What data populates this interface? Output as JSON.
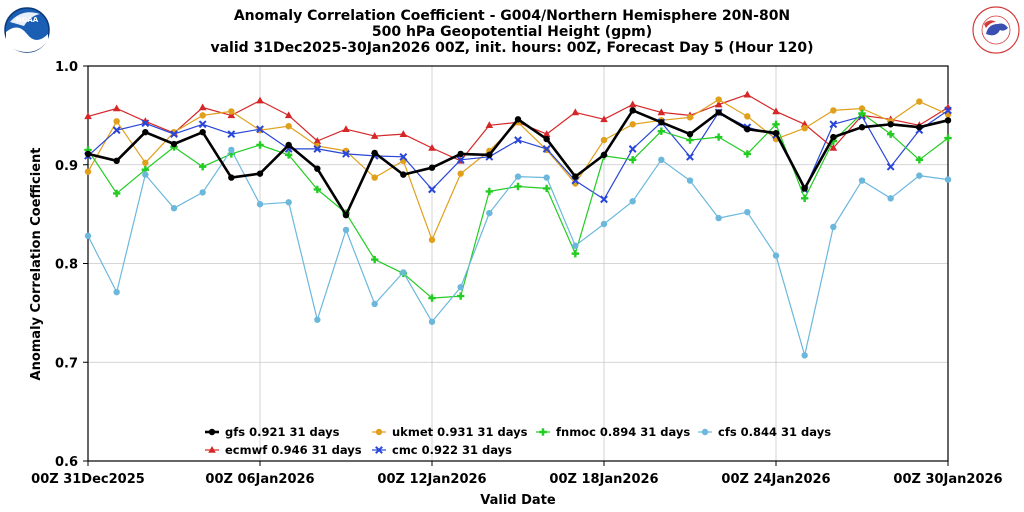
{
  "header": {
    "title_lines": [
      "Anomaly Correlation Coefficient - G004/Northern Hemisphere 20N-80N",
      "500 hPa Geopotential Height (gpm)",
      "valid 31Dec2025-30Jan2026 00Z, init. hours: 00Z, Forecast Day 5 (Hour 120)"
    ],
    "left_logo_text": "NOAA",
    "right_logo_text": "NATIONAL WEATHER SERVICE"
  },
  "chart_data": {
    "type": "line",
    "title": "Anomaly Correlation Coefficient - G004/Northern Hemisphere 20N-80N",
    "subtitle": "500 hPa Geopotential Height (gpm) valid 31Dec2025-30Jan2026 00Z, init. hours: 00Z, Forecast Day 5 (Hour 120)",
    "xlabel": "Valid Date",
    "ylabel": "Anomaly Correlation Coefficient",
    "ylim": [
      0.6,
      1.0
    ],
    "yticks": [
      "0.6",
      "0.7",
      "0.8",
      "0.9",
      "1.0"
    ],
    "x_ticks": [
      {
        "index": 0,
        "label": "00Z 31Dec2025"
      },
      {
        "index": 6,
        "label": "00Z 06Jan2026"
      },
      {
        "index": 12,
        "label": "00Z 12Jan2026"
      },
      {
        "index": 18,
        "label": "00Z 18Jan2026"
      },
      {
        "index": 24,
        "label": "00Z 24Jan2026"
      },
      {
        "index": 30,
        "label": "00Z 30Jan2026"
      }
    ],
    "x": [
      "2025-12-31",
      "2026-01-01",
      "2026-01-02",
      "2026-01-03",
      "2026-01-04",
      "2026-01-05",
      "2026-01-06",
      "2026-01-07",
      "2026-01-08",
      "2026-01-09",
      "2026-01-10",
      "2026-01-11",
      "2026-01-12",
      "2026-01-13",
      "2026-01-14",
      "2026-01-15",
      "2026-01-16",
      "2026-01-17",
      "2026-01-18",
      "2026-01-19",
      "2026-01-20",
      "2026-01-21",
      "2026-01-22",
      "2026-01-23",
      "2026-01-24",
      "2026-01-25",
      "2026-01-26",
      "2026-01-27",
      "2026-01-28",
      "2026-01-29",
      "2026-01-30"
    ],
    "grid": true,
    "legend_placement": "bottom-center",
    "series": [
      {
        "name": "gfs",
        "label": "gfs 0.921 31 days",
        "color": "#000000",
        "marker": "circle",
        "line_width": 2.6,
        "values": [
          0.911,
          0.904,
          0.933,
          0.921,
          0.933,
          0.887,
          0.891,
          0.92,
          0.896,
          0.849,
          0.912,
          0.89,
          0.897,
          0.911,
          0.91,
          0.946,
          0.926,
          0.888,
          0.91,
          0.955,
          0.943,
          0.931,
          0.953,
          0.936,
          0.932,
          0.876,
          0.928,
          0.938,
          0.941,
          0.938,
          0.945
        ]
      },
      {
        "name": "ecmwf",
        "label": "ecmwf 0.946 31 days",
        "color": "#d62728",
        "marker": "triangle",
        "line_width": 1.2,
        "values": [
          0.949,
          0.957,
          0.944,
          0.932,
          0.958,
          0.95,
          0.965,
          0.95,
          0.924,
          0.936,
          0.929,
          0.931,
          0.917,
          0.904,
          0.94,
          0.943,
          0.931,
          0.953,
          0.946,
          0.961,
          0.953,
          0.95,
          0.961,
          0.971,
          0.954,
          0.941,
          0.917,
          0.95,
          0.946,
          0.94,
          0.958
        ]
      },
      {
        "name": "ukmet",
        "label": "ukmet 0.931 31 days",
        "color": "#e0a01c",
        "marker": "circle",
        "line_width": 1.2,
        "values": [
          0.893,
          0.944,
          0.902,
          0.933,
          0.95,
          0.954,
          0.935,
          0.939,
          0.919,
          0.914,
          0.887,
          0.904,
          0.824,
          0.891,
          0.914,
          0.943,
          0.915,
          0.881,
          0.925,
          0.941,
          0.945,
          0.948,
          0.966,
          0.949,
          0.926,
          0.937,
          0.955,
          0.957,
          0.944,
          0.964,
          0.951
        ]
      },
      {
        "name": "cmc",
        "label": "cmc 0.922 31 days",
        "color": "#2846d8",
        "marker": "x",
        "line_width": 1.2,
        "values": [
          0.909,
          0.935,
          0.942,
          0.931,
          0.941,
          0.931,
          0.936,
          0.916,
          0.916,
          0.911,
          0.909,
          0.908,
          0.875,
          0.905,
          0.908,
          0.925,
          0.916,
          0.884,
          0.865,
          0.916,
          0.943,
          0.908,
          0.953,
          0.938,
          0.93,
          0.875,
          0.941,
          0.949,
          0.898,
          0.935,
          0.955
        ]
      },
      {
        "name": "fnmoc",
        "label": "fnmoc 0.894 31 days",
        "color": "#22cc22",
        "marker": "plus",
        "line_width": 1.2,
        "values": [
          0.915,
          0.871,
          0.895,
          0.918,
          0.898,
          0.911,
          0.92,
          0.91,
          0.875,
          0.851,
          0.804,
          0.79,
          0.765,
          0.767,
          0.873,
          0.878,
          0.876,
          0.81,
          0.909,
          0.905,
          0.934,
          0.925,
          0.928,
          0.911,
          0.941,
          0.866,
          0.924,
          0.952,
          0.931,
          0.905,
          0.927
        ]
      },
      {
        "name": "cfs",
        "label": "cfs 0.844 31 days",
        "color": "#6cb8dc",
        "marker": "circle",
        "line_width": 1.2,
        "values": [
          0.828,
          0.771,
          0.89,
          0.856,
          0.872,
          0.915,
          0.86,
          0.862,
          0.743,
          0.834,
          0.759,
          0.791,
          0.741,
          0.776,
          0.851,
          0.888,
          0.887,
          0.818,
          0.84,
          0.863,
          0.905,
          0.884,
          0.846,
          0.852,
          0.808,
          0.707,
          0.837,
          0.884,
          0.866,
          0.889,
          0.885
        ]
      }
    ],
    "legend_order": [
      "gfs",
      "ukmet",
      "fnmoc",
      "cfs",
      "ecmwf",
      "cmc"
    ]
  }
}
